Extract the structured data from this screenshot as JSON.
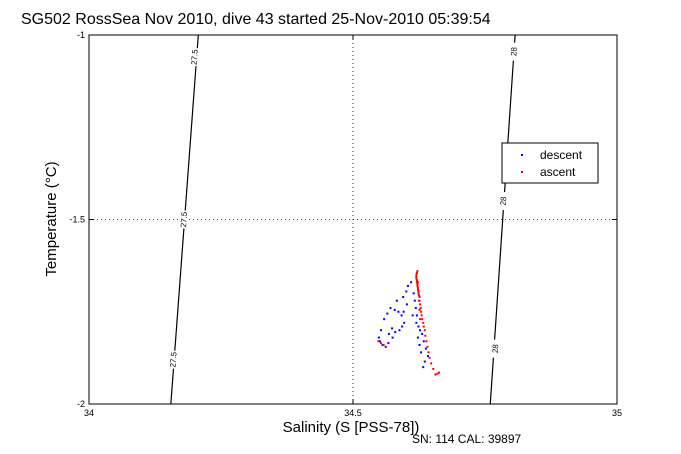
{
  "chart_data": {
    "type": "scatter",
    "title": "SG502 RossSea Nov 2010, dive 43 started 25-Nov-2010 05:39:54",
    "xlabel": "Salinity (S [PSS-78])",
    "ylabel": "Temperature (°C)",
    "xlim": [
      34,
      35
    ],
    "ylim": [
      -2,
      -1
    ],
    "x_ticks": [
      34,
      34.5,
      35
    ],
    "x_tick_labels": [
      "34",
      "34.5",
      "35"
    ],
    "y_ticks": [
      -2,
      -1.5,
      -1
    ],
    "y_tick_labels": [
      "-2",
      "-1.5",
      "-1"
    ],
    "grid": "dotted",
    "legend_position": "right",
    "isopycnals": [
      {
        "label": "27.5",
        "points": [
          [
            34.207,
            -1
          ],
          [
            34.155,
            -2
          ]
        ],
        "label_positions": [
          [
            34.2,
            -1.06
          ],
          [
            34.18,
            -1.5
          ],
          [
            34.16,
            -1.88
          ]
        ]
      },
      {
        "label": "28",
        "points": [
          [
            34.807,
            -1
          ],
          [
            34.76,
            -2
          ]
        ],
        "label_positions": [
          [
            34.805,
            -1.045
          ],
          [
            34.785,
            -1.45
          ],
          [
            34.77,
            -1.85
          ]
        ]
      }
    ],
    "series": [
      {
        "name": "descent",
        "color": "#0000ff",
        "x": [
          34.551,
          34.556,
          34.562,
          34.567,
          34.575,
          34.58,
          34.588,
          34.593,
          34.597,
          34.592,
          34.586,
          34.579,
          34.571,
          34.565,
          34.559,
          34.553,
          34.549,
          34.568,
          34.574,
          34.583,
          34.595,
          34.601,
          34.604,
          34.61,
          34.615,
          34.602,
          34.596,
          34.613,
          34.62,
          34.624,
          34.627,
          34.631,
          34.634,
          34.638,
          34.642,
          34.636,
          34.633,
          34.629,
          34.626,
          34.623,
          34.621,
          34.619,
          34.617
        ],
        "y": [
          -1.83,
          -1.84,
          -1.845,
          -1.835,
          -1.82,
          -1.805,
          -1.8,
          -1.79,
          -1.78,
          -1.76,
          -1.75,
          -1.745,
          -1.74,
          -1.755,
          -1.77,
          -1.8,
          -1.82,
          -1.81,
          -1.795,
          -1.72,
          -1.71,
          -1.695,
          -1.68,
          -1.67,
          -1.7,
          -1.73,
          -1.75,
          -1.76,
          -1.78,
          -1.79,
          -1.8,
          -1.81,
          -1.83,
          -1.85,
          -1.87,
          -1.885,
          -1.9,
          -1.86,
          -1.84,
          -1.82,
          -1.76,
          -1.74,
          -1.72
        ]
      },
      {
        "name": "ascent",
        "color": "#ff0000",
        "x": [
          34.548,
          34.553,
          34.558,
          34.663,
          34.66,
          34.656,
          34.652,
          34.648,
          34.645,
          34.643,
          34.641,
          34.639,
          34.637,
          34.636,
          34.634,
          34.633,
          34.631,
          34.63,
          34.629,
          34.628,
          34.627,
          34.626,
          34.626,
          34.625,
          34.624,
          34.624,
          34.623,
          34.623,
          34.622,
          34.622,
          34.621,
          34.621,
          34.62,
          34.62,
          34.62,
          34.621,
          34.622,
          34.623,
          34.624,
          34.625,
          34.626,
          34.627
        ],
        "y": [
          -1.83,
          -1.835,
          -1.84,
          -1.915,
          -1.918,
          -1.92,
          -1.905,
          -1.89,
          -1.875,
          -1.86,
          -1.845,
          -1.83,
          -1.815,
          -1.8,
          -1.79,
          -1.78,
          -1.77,
          -1.76,
          -1.75,
          -1.74,
          -1.73,
          -1.72,
          -1.71,
          -1.705,
          -1.7,
          -1.695,
          -1.69,
          -1.685,
          -1.68,
          -1.675,
          -1.67,
          -1.665,
          -1.66,
          -1.655,
          -1.65,
          -1.645,
          -1.64,
          -1.67,
          -1.695,
          -1.72,
          -1.745,
          -1.77
        ]
      }
    ]
  },
  "footer": {
    "serial": "SN: 114  CAL: 39897"
  }
}
